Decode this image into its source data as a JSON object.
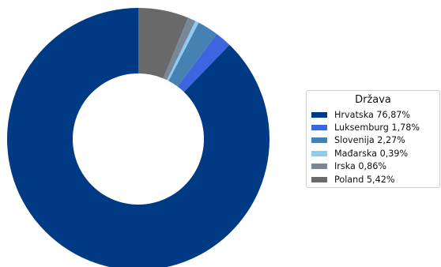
{
  "chart_data": {
    "type": "pie",
    "donut": true,
    "start_angle_deg": 90,
    "direction": "counterclockwise",
    "legend": {
      "title": "Država",
      "placement": "right"
    },
    "slices": [
      {
        "label": "Hrvatska",
        "value": 76.87,
        "display": "Hrvatska 76,87%",
        "color": "#003a84"
      },
      {
        "label": "Luksemburg",
        "value": 1.78,
        "display": "Luksemburg 1,78%",
        "color": "#3d65df"
      },
      {
        "label": "Slovenija",
        "value": 2.27,
        "display": "Slovenija 2,27%",
        "color": "#4681b4"
      },
      {
        "label": "Mađarska",
        "value": 0.39,
        "display": "Mađarska 0,39%",
        "color": "#8ccbf4"
      },
      {
        "label": "Irska",
        "value": 0.86,
        "display": "Irska 0,86%",
        "color": "#778899"
      },
      {
        "label": "Poland",
        "value": 5.42,
        "display": "Poland 5,42%",
        "color": "#696969"
      }
    ]
  }
}
